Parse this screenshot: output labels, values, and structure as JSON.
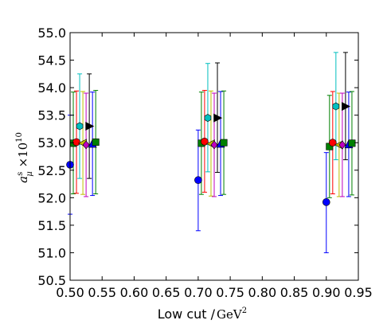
{
  "chart_data": {
    "type": "scatter",
    "title": "",
    "xlabel": "Low cut / ",
    "xlabel_unit": "GeV",
    "xlabel_unit_power": "2",
    "ylabel_symbol": "a",
    "ylabel_superscript": "s",
    "ylabel_subscript": "μ",
    "ylabel_factor": " ×10",
    "ylabel_factor_power": "10",
    "xlim": [
      0.5,
      0.95
    ],
    "ylim": [
      50.5,
      55.0
    ],
    "x_ticks": [
      "0.50",
      "0.55",
      "0.60",
      "0.65",
      "0.70",
      "0.75",
      "0.80",
      "0.85",
      "0.90",
      "0.95"
    ],
    "y_ticks": [
      "50.5",
      "51.0",
      "51.5",
      "52.0",
      "52.5",
      "53.0",
      "53.5",
      "54.0",
      "54.5",
      "55.0"
    ],
    "grid": false,
    "series": [
      {
        "marker": "circle",
        "color": "#0000ff",
        "points": [
          {
            "x": 0.5,
            "y": 52.6,
            "lo": 51.7,
            "hi": 53.5
          },
          {
            "x": 0.7,
            "y": 52.32,
            "lo": 51.4,
            "hi": 53.23
          },
          {
            "x": 0.9,
            "y": 51.92,
            "lo": 51.0,
            "hi": 52.82
          }
        ]
      },
      {
        "marker": "square",
        "color": "#008000",
        "points": [
          {
            "x": 0.505,
            "y": 52.99,
            "lo": 52.07,
            "hi": 53.92
          },
          {
            "x": 0.705,
            "y": 52.99,
            "lo": 52.06,
            "hi": 53.92
          },
          {
            "x": 0.905,
            "y": 52.93,
            "lo": 52.0,
            "hi": 53.86
          }
        ]
      },
      {
        "marker": "circle",
        "color": "#ff0000",
        "points": [
          {
            "x": 0.51,
            "y": 53.01,
            "lo": 52.08,
            "hi": 53.94
          },
          {
            "x": 0.71,
            "y": 53.02,
            "lo": 52.1,
            "hi": 53.95
          },
          {
            "x": 0.91,
            "y": 53.0,
            "lo": 52.07,
            "hi": 53.93
          }
        ]
      },
      {
        "marker": "hexagon",
        "color": "#00bfbf",
        "points": [
          {
            "x": 0.515,
            "y": 53.3,
            "lo": 52.35,
            "hi": 54.25
          },
          {
            "x": 0.715,
            "y": 53.45,
            "lo": 52.47,
            "hi": 54.44
          },
          {
            "x": 0.915,
            "y": 53.66,
            "lo": 52.69,
            "hi": 54.64
          }
        ]
      },
      {
        "marker": "triangle-left",
        "color": "#bfbf00",
        "points": [
          {
            "x": 0.52,
            "y": 52.99,
            "lo": 52.06,
            "hi": 53.93
          },
          {
            "x": 0.72,
            "y": 52.98,
            "lo": 52.03,
            "hi": 53.94
          },
          {
            "x": 0.92,
            "y": 52.96,
            "lo": 52.02,
            "hi": 53.9
          }
        ]
      },
      {
        "marker": "diamond",
        "color": "#bf00bf",
        "points": [
          {
            "x": 0.525,
            "y": 52.96,
            "lo": 52.02,
            "hi": 53.9
          },
          {
            "x": 0.725,
            "y": 52.96,
            "lo": 52.02,
            "hi": 53.9
          },
          {
            "x": 0.925,
            "y": 52.96,
            "lo": 52.02,
            "hi": 53.9
          }
        ]
      },
      {
        "marker": "triangle-right",
        "color": "#000000",
        "points": [
          {
            "x": 0.53,
            "y": 53.3,
            "lo": 52.35,
            "hi": 54.25
          },
          {
            "x": 0.73,
            "y": 53.45,
            "lo": 52.46,
            "hi": 54.45
          },
          {
            "x": 0.93,
            "y": 53.66,
            "lo": 52.69,
            "hi": 54.64
          }
        ]
      },
      {
        "marker": "triangle-up",
        "color": "#0000ff",
        "points": [
          {
            "x": 0.535,
            "y": 52.98,
            "lo": 52.04,
            "hi": 53.92
          },
          {
            "x": 0.735,
            "y": 52.98,
            "lo": 52.04,
            "hi": 53.93
          },
          {
            "x": 0.935,
            "y": 52.97,
            "lo": 52.02,
            "hi": 53.92
          }
        ]
      },
      {
        "marker": "square",
        "color": "#008000",
        "points": [
          {
            "x": 0.54,
            "y": 53.01,
            "lo": 52.07,
            "hi": 53.95
          },
          {
            "x": 0.74,
            "y": 53.0,
            "lo": 52.06,
            "hi": 53.94
          },
          {
            "x": 0.94,
            "y": 52.99,
            "lo": 52.05,
            "hi": 53.93
          }
        ]
      }
    ]
  }
}
